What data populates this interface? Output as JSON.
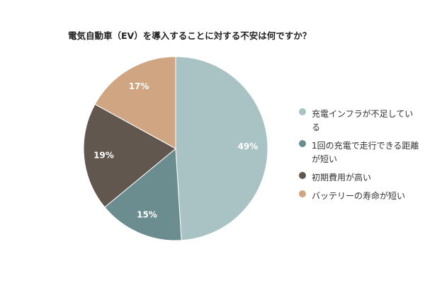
{
  "chart_data": {
    "type": "pie",
    "title": "電気自動車（EV）を導入することに対する不安は何ですか？",
    "categories": [
      "充電インフラが不足している",
      "1回の充電で走行できる距離が短い",
      "初期費用が高い",
      "バッテリーの寿命が短い"
    ],
    "values": [
      49,
      15,
      19,
      17
    ],
    "labels": [
      "49%",
      "15%",
      "19%",
      "17%"
    ],
    "colors": [
      "#a9c2c3",
      "#6b8d90",
      "#62574e",
      "#cfa681"
    ],
    "legend_position": "right"
  }
}
